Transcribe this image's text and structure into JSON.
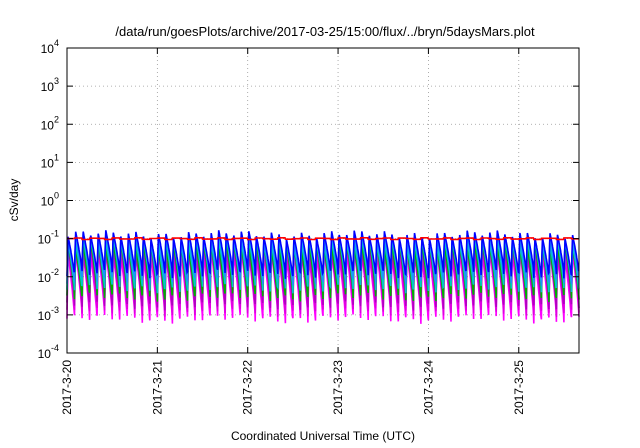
{
  "chart_data": {
    "type": "line",
    "title": "/data/run/goesPlots/archive/2017-03-25/15:00/flux/../bryn/5daysMars.plot",
    "xlabel": "Coordinated Universal Time (UTC)",
    "ylabel": "cSv/day",
    "y_scale": "log",
    "ylim": [
      0.0001,
      10000
    ],
    "y_ticks": [
      {
        "value": 0.0001,
        "base": "10",
        "exp": "-4"
      },
      {
        "value": 0.001,
        "base": "10",
        "exp": "-3"
      },
      {
        "value": 0.01,
        "base": "10",
        "exp": "-2"
      },
      {
        "value": 0.1,
        "base": "10",
        "exp": "-1"
      },
      {
        "value": 1,
        "base": "10",
        "exp": "0"
      },
      {
        "value": 10,
        "base": "10",
        "exp": "1"
      },
      {
        "value": 100,
        "base": "10",
        "exp": "2"
      },
      {
        "value": 1000,
        "base": "10",
        "exp": "3"
      },
      {
        "value": 10000,
        "base": "10",
        "exp": "4"
      }
    ],
    "xlim": [
      "2017-03-20 00:00",
      "2017-03-25 16:00"
    ],
    "x_ticks": [
      "2017-3-20",
      "2017-3-21",
      "2017-3-22",
      "2017-3-23",
      "2017-3-24",
      "2017-3-25"
    ],
    "grid": true,
    "period_hours": 2,
    "series": [
      {
        "color": "#ff00ff",
        "peak": 0.04,
        "trough": 0.0008
      },
      {
        "color": "#e000e0",
        "peak": 0.05,
        "trough": 0.0012
      },
      {
        "color": "#b000c0",
        "peak": 0.06,
        "trough": 0.0018
      },
      {
        "color": "#00b000",
        "peak": 0.07,
        "trough": 0.003
      },
      {
        "color": "#00c8c8",
        "peak": 0.09,
        "trough": 0.005
      },
      {
        "color": "#1e90ff",
        "peak": 0.11,
        "trough": 0.008
      },
      {
        "color": "#0000ff",
        "peak": 0.13,
        "trough": 0.012
      },
      {
        "color": "#ff0000",
        "peak": 0.1,
        "trough": 0.1
      }
    ]
  }
}
